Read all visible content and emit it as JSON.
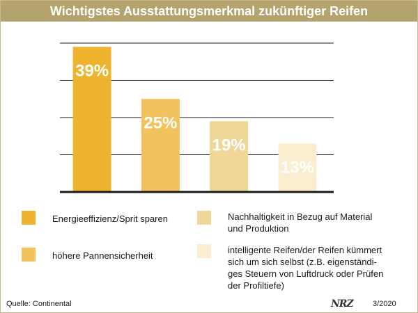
{
  "header": {
    "title": "Wichtigstes Ausstattungsmerkmal zukünftiger Reifen"
  },
  "chart_data": {
    "type": "bar",
    "title": "Wichtigstes Ausstattungsmerkmal zukünftiger Reifen",
    "categories": [
      "Energieeffizienz/Sprit sparen",
      "höhere Pannensicherheit",
      "Nachhaltigkeit in Bezug auf Material und Produktion",
      "intelligente Reifen/der Reifen kümmert sich um sich selbst (z.B. eigenständiges Steuern von Luftdruck oder Prüfen der Profiltiefe)"
    ],
    "values": [
      39,
      25,
      19,
      13
    ],
    "data_labels": [
      "39%",
      "25%",
      "19%",
      "13%"
    ],
    "colors": [
      "#efb42e",
      "#f2c25d",
      "#efd79a",
      "#fbedcf"
    ],
    "ylim": [
      0,
      40
    ],
    "grid": true,
    "legend_position": "bottom"
  },
  "legend": {
    "items": [
      {
        "label": "Energieeffizienz/Sprit sparen",
        "color": "#efb42e"
      },
      {
        "label": "höhere Pannensicherheit",
        "color": "#f2c25d"
      },
      {
        "label": "Nachhaltigkeit in Bezug auf Material\nund Produktion",
        "color": "#efd79a"
      },
      {
        "label": "intelligente Reifen/der Reifen kümmert\nsich um sich selbst (z.B. eigenständi-\nges Steuern von Luftdruck oder Prüfen\nder Profiltiefe)",
        "color": "#fbedcf"
      }
    ]
  },
  "footer": {
    "source": "Quelle: Continental",
    "logo": "NRZ",
    "date": "3/2020"
  }
}
